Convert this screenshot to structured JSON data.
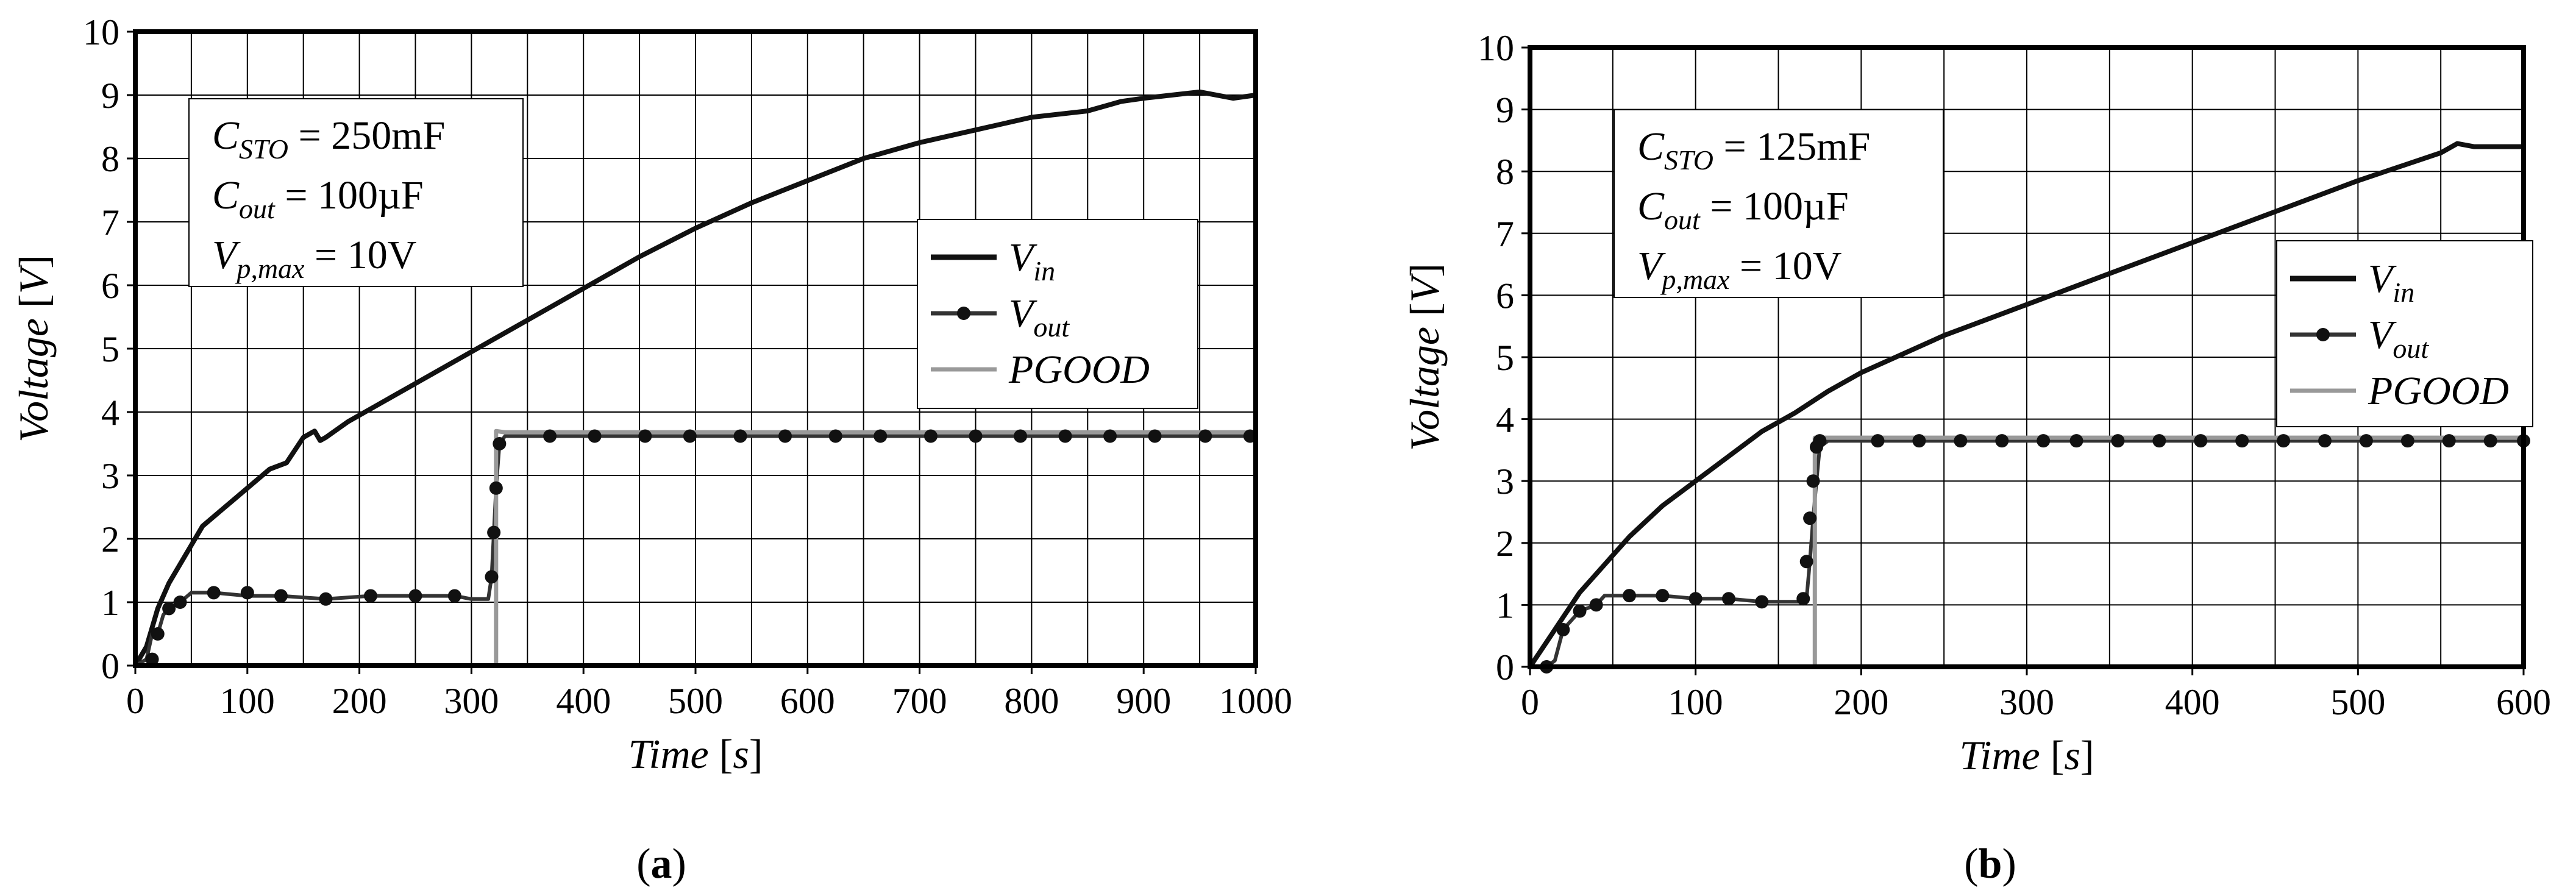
{
  "chart_data": [
    {
      "type": "line",
      "panel": "a",
      "caption": {
        "open": "(",
        "letter": "a",
        "close": ")"
      },
      "xlabel": {
        "name": "Time",
        "unit": "s"
      },
      "ylabel": {
        "name": "Voltage",
        "unit": "V"
      },
      "xlim": [
        0,
        1000
      ],
      "ylim": [
        0,
        10
      ],
      "x_ticks": [
        0,
        100,
        200,
        300,
        400,
        500,
        600,
        700,
        800,
        900,
        1000
      ],
      "y_ticks": [
        0,
        1,
        2,
        3,
        4,
        5,
        6,
        7,
        8,
        9,
        10
      ],
      "x_grid_step": 50,
      "y_grid_step": 1,
      "annotations": [
        {
          "base": "C",
          "sub": "STO",
          "rest": " = 250mF"
        },
        {
          "base": "C",
          "sub": "out",
          "rest": " = 100µF"
        },
        {
          "base": "V",
          "sub": "p,max",
          "rest": " = 10V"
        }
      ],
      "legend": [
        {
          "base": "V",
          "sub": "in",
          "style": "solid-thick"
        },
        {
          "base": "V",
          "sub": "out",
          "style": "solid-markers"
        },
        {
          "base": "PGOOD",
          "sub": "",
          "style": "solid-gray"
        }
      ],
      "series": [
        {
          "name": "Vin",
          "color": "#111111",
          "x": [
            0,
            10,
            20,
            30,
            40,
            50,
            60,
            80,
            100,
            120,
            135,
            150,
            160,
            165,
            170,
            190,
            210,
            230,
            250,
            280,
            300,
            320,
            340,
            360,
            400,
            450,
            500,
            550,
            600,
            650,
            700,
            750,
            800,
            850,
            870,
            880,
            900,
            950,
            980,
            1000
          ],
          "y": [
            0,
            0.3,
            0.9,
            1.3,
            1.6,
            1.9,
            2.2,
            2.5,
            2.8,
            3.1,
            3.2,
            3.6,
            3.7,
            3.55,
            3.6,
            3.85,
            4.05,
            4.25,
            4.45,
            4.75,
            4.95,
            5.15,
            5.35,
            5.55,
            5.95,
            6.45,
            6.9,
            7.3,
            7.65,
            8.0,
            8.25,
            8.45,
            8.65,
            8.75,
            8.85,
            8.9,
            8.95,
            9.05,
            8.95,
            9.0
          ]
        },
        {
          "name": "Vout",
          "color": "#333333",
          "x": [
            0,
            10,
            15,
            20,
            25,
            30,
            40,
            50,
            70,
            100,
            130,
            170,
            210,
            250,
            285,
            300,
            315,
            318,
            320,
            322,
            325,
            330,
            370,
            410,
            460,
            500,
            550,
            600,
            650,
            700,
            750,
            800,
            850,
            900,
            950,
            1000
          ],
          "y": [
            0,
            0.1,
            0.5,
            0.5,
            0.8,
            0.9,
            1.0,
            1.15,
            1.15,
            1.1,
            1.1,
            1.05,
            1.1,
            1.1,
            1.1,
            1.05,
            1.05,
            1.4,
            2.1,
            2.8,
            3.5,
            3.62,
            3.62,
            3.62,
            3.62,
            3.62,
            3.62,
            3.62,
            3.62,
            3.62,
            3.62,
            3.62,
            3.62,
            3.62,
            3.62,
            3.62
          ],
          "markers_x": [
            15,
            20,
            30,
            40,
            70,
            100,
            130,
            170,
            210,
            250,
            285,
            318,
            320,
            322,
            325,
            370,
            410,
            455,
            495,
            540,
            580,
            625,
            665,
            710,
            750,
            790,
            830,
            870,
            910,
            955,
            995
          ],
          "markers_y": [
            0.1,
            0.5,
            0.9,
            1.0,
            1.15,
            1.15,
            1.1,
            1.05,
            1.1,
            1.1,
            1.1,
            1.4,
            2.1,
            2.8,
            3.5,
            3.62,
            3.62,
            3.62,
            3.62,
            3.62,
            3.62,
            3.62,
            3.62,
            3.62,
            3.62,
            3.62,
            3.62,
            3.62,
            3.62,
            3.62,
            3.62
          ]
        },
        {
          "name": "PGOOD",
          "color": "#999999",
          "x": [
            0,
            322,
            322,
            330,
            1000
          ],
          "y": [
            0,
            0,
            3.7,
            3.68,
            3.68
          ]
        }
      ]
    },
    {
      "type": "line",
      "panel": "b",
      "caption": {
        "open": "(",
        "letter": "b",
        "close": ")"
      },
      "xlabel": {
        "name": "Time",
        "unit": "s"
      },
      "ylabel": {
        "name": "Voltage",
        "unit": "V"
      },
      "xlim": [
        0,
        600
      ],
      "ylim": [
        0,
        10
      ],
      "x_ticks": [
        0,
        100,
        200,
        300,
        400,
        500,
        600
      ],
      "y_ticks": [
        0,
        1,
        2,
        3,
        4,
        5,
        6,
        7,
        8,
        9,
        10
      ],
      "x_grid_step": 50,
      "y_grid_step": 1,
      "annotations": [
        {
          "base": "C",
          "sub": "STO",
          "rest": " = 125mF"
        },
        {
          "base": "C",
          "sub": "out",
          "rest": " = 100µF"
        },
        {
          "base": "V",
          "sub": "p,max",
          "rest": " = 10V"
        }
      ],
      "legend": [
        {
          "base": "V",
          "sub": "in",
          "style": "solid-thick"
        },
        {
          "base": "V",
          "sub": "out",
          "style": "solid-markers"
        },
        {
          "base": "PGOOD",
          "sub": "",
          "style": "solid-gray"
        }
      ],
      "series": [
        {
          "name": "Vin",
          "color": "#111111",
          "x": [
            0,
            10,
            20,
            30,
            40,
            50,
            60,
            80,
            100,
            120,
            140,
            160,
            180,
            200,
            250,
            300,
            350,
            400,
            450,
            500,
            550,
            560,
            570,
            600
          ],
          "y": [
            0,
            0.4,
            0.8,
            1.2,
            1.5,
            1.8,
            2.1,
            2.6,
            3.0,
            3.4,
            3.8,
            4.1,
            4.45,
            4.75,
            5.35,
            5.85,
            6.35,
            6.85,
            7.35,
            7.85,
            8.3,
            8.45,
            8.4,
            8.4
          ]
        },
        {
          "name": "Vout",
          "color": "#333333",
          "x": [
            0,
            10,
            15,
            20,
            30,
            40,
            45,
            60,
            80,
            100,
            120,
            140,
            155,
            165,
            167,
            169,
            171,
            173,
            175,
            180,
            210,
            250,
            300,
            350,
            400,
            450,
            500,
            550,
            600
          ],
          "y": [
            0,
            0,
            0.1,
            0.6,
            0.9,
            1.0,
            1.15,
            1.15,
            1.15,
            1.1,
            1.1,
            1.05,
            1.05,
            1.05,
            1.1,
            1.7,
            2.4,
            3.0,
            3.55,
            3.65,
            3.65,
            3.65,
            3.65,
            3.65,
            3.65,
            3.65,
            3.65,
            3.65,
            3.65
          ],
          "markers_x": [
            10,
            20,
            30,
            40,
            60,
            80,
            100,
            120,
            140,
            165,
            167,
            169,
            171,
            173,
            175,
            210,
            235,
            260,
            285,
            310,
            330,
            355,
            380,
            405,
            430,
            455,
            480,
            505,
            530,
            555,
            580,
            600
          ],
          "markers_y": [
            0,
            0.6,
            0.9,
            1.0,
            1.15,
            1.15,
            1.1,
            1.1,
            1.05,
            1.1,
            1.7,
            2.4,
            3.0,
            3.55,
            3.65,
            3.65,
            3.65,
            3.65,
            3.65,
            3.65,
            3.65,
            3.65,
            3.65,
            3.65,
            3.65,
            3.65,
            3.65,
            3.65,
            3.65,
            3.65,
            3.65,
            3.65
          ]
        },
        {
          "name": "PGOOD",
          "color": "#999999",
          "x": [
            0,
            172,
            172,
            180,
            600
          ],
          "y": [
            0,
            0,
            3.7,
            3.7,
            3.7
          ]
        }
      ]
    }
  ]
}
